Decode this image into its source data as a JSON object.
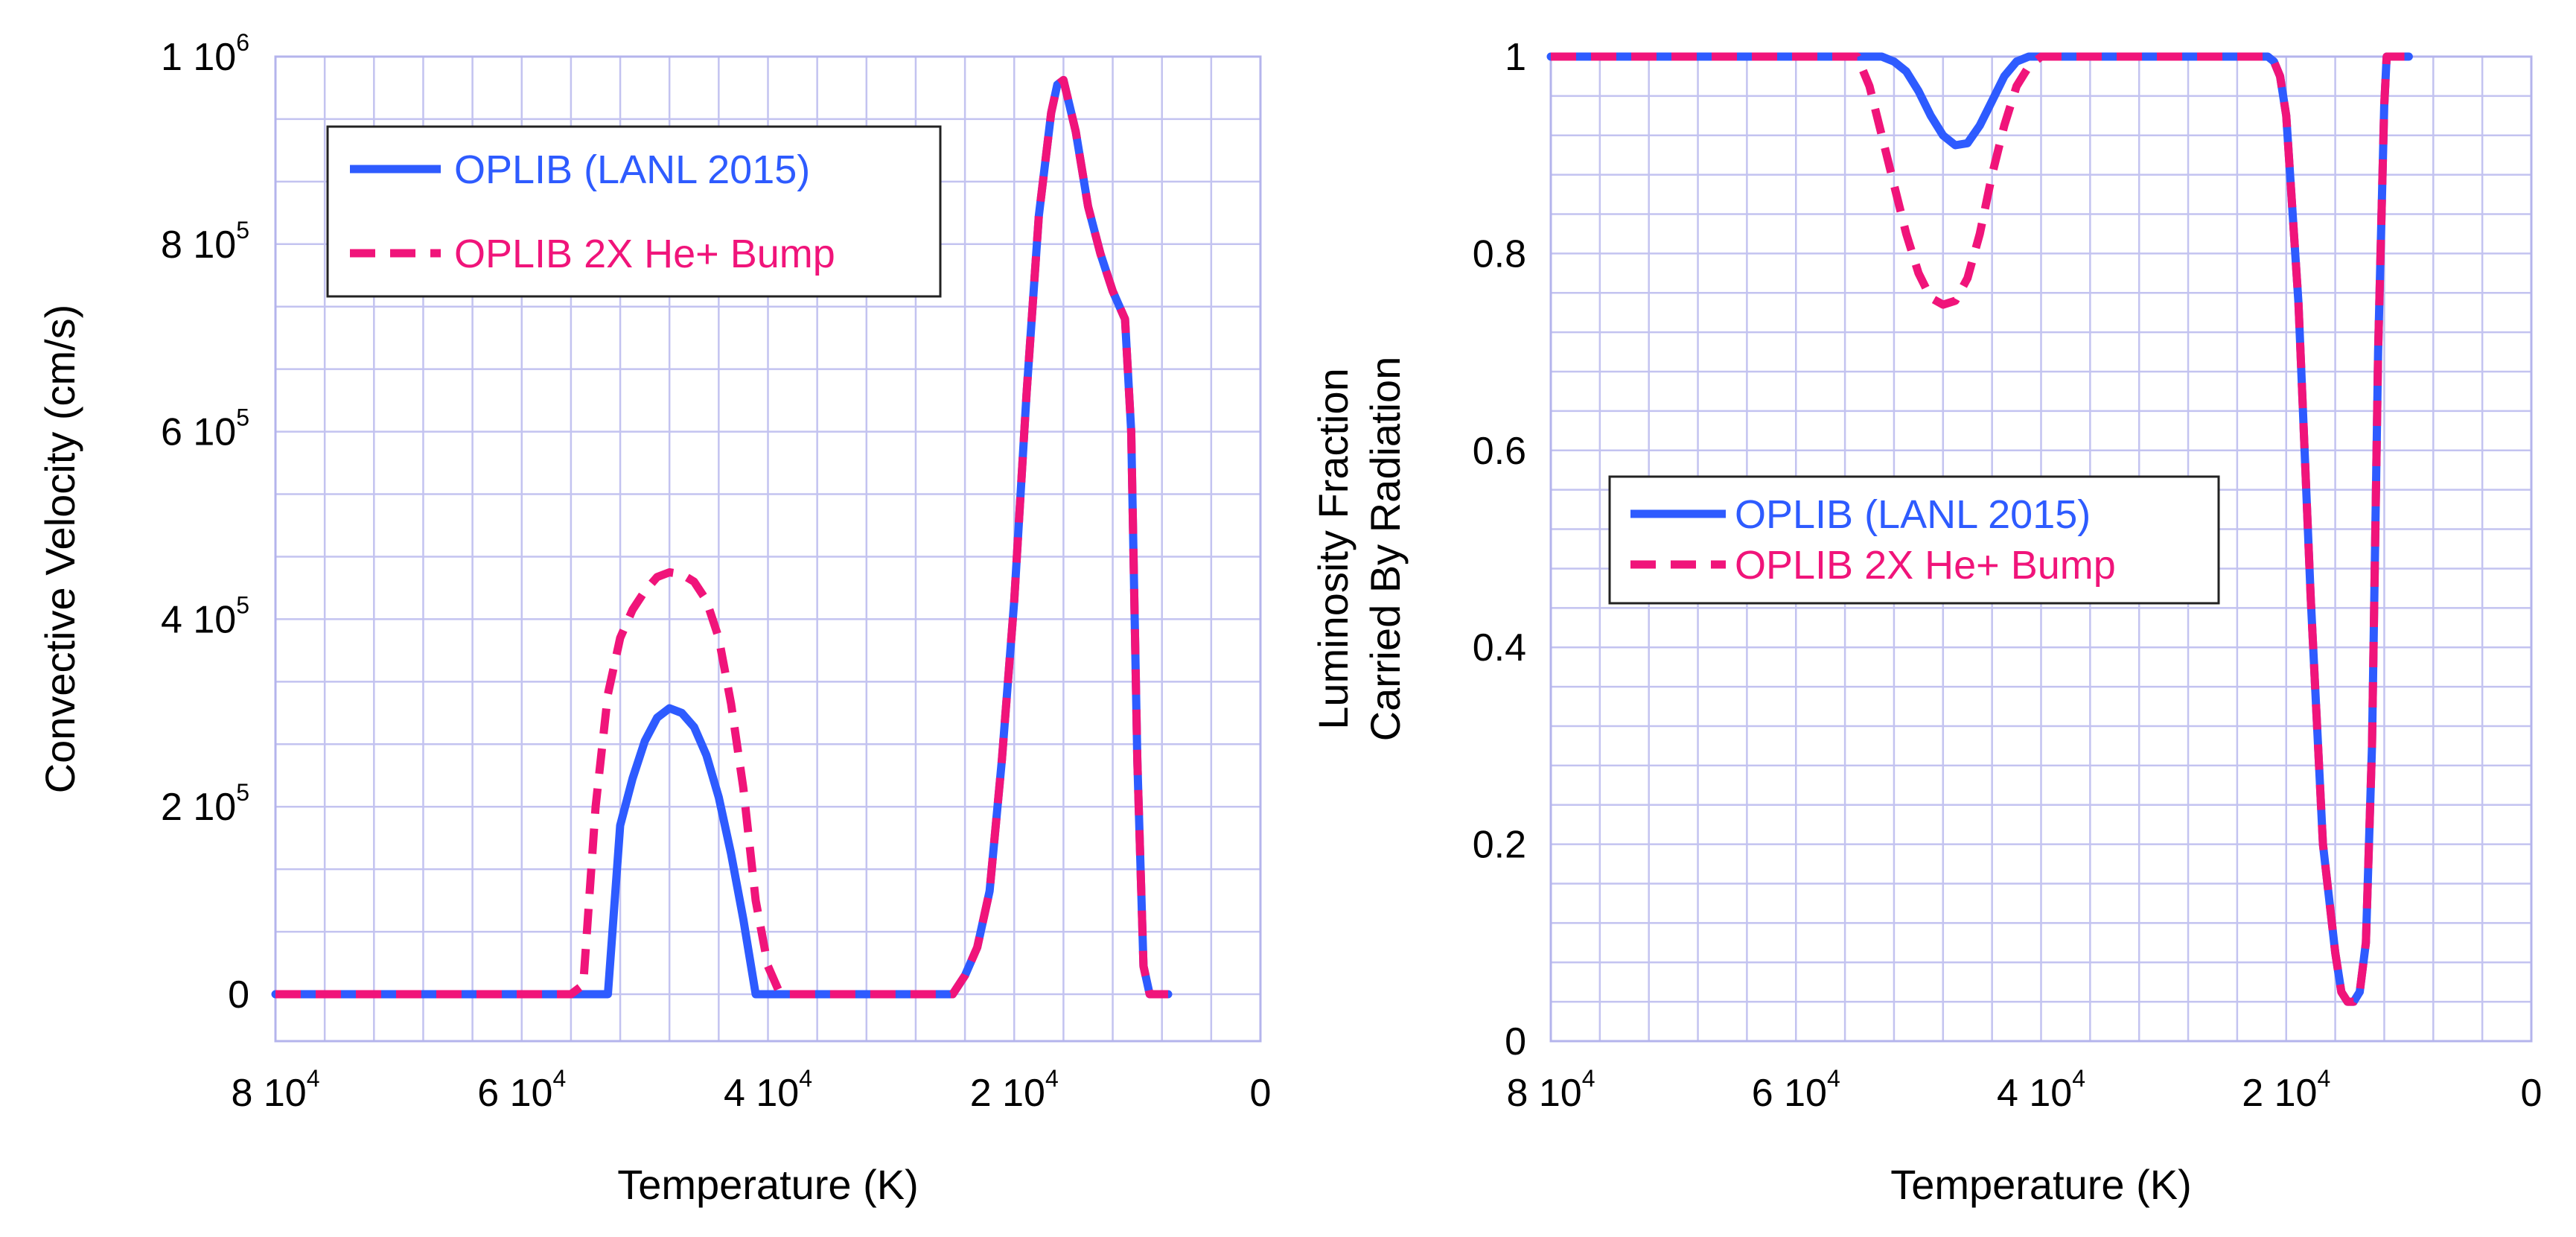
{
  "chart_data": [
    {
      "type": "line",
      "xlabel": "Temperature (K)",
      "ylabel": "Convective Velocity (cm/s)",
      "xlim": [
        80000,
        0
      ],
      "ylim": [
        -50000,
        1000000
      ],
      "x_ticks": [
        {
          "value": 80000,
          "mant": "8 10",
          "exp": "4"
        },
        {
          "value": 60000,
          "mant": "6 10",
          "exp": "4"
        },
        {
          "value": 40000,
          "mant": "4 10",
          "exp": "4"
        },
        {
          "value": 20000,
          "mant": "2 10",
          "exp": "4"
        },
        {
          "value": 0,
          "mant": "0",
          "exp": ""
        }
      ],
      "y_ticks": [
        {
          "value": 1000000,
          "mant": "1 10",
          "exp": "6"
        },
        {
          "value": 800000,
          "mant": "8 10",
          "exp": "5"
        },
        {
          "value": 600000,
          "mant": "6 10",
          "exp": "5"
        },
        {
          "value": 400000,
          "mant": "4 10",
          "exp": "5"
        },
        {
          "value": 200000,
          "mant": "2 10",
          "exp": "5"
        },
        {
          "value": 0,
          "mant": "0",
          "exp": ""
        }
      ],
      "legend_position": "top-left",
      "series": [
        {
          "name": "OPLIB (LANL 2015)",
          "color": "#2e5bff",
          "dash": "solid",
          "points": [
            [
              80000,
              0
            ],
            [
              70000,
              0
            ],
            [
              60000,
              0
            ],
            [
              53000,
              0
            ],
            [
              52000,
              180000
            ],
            [
              51000,
              230000
            ],
            [
              50000,
              270000
            ],
            [
              49000,
              295000
            ],
            [
              48000,
              305000
            ],
            [
              47000,
              300000
            ],
            [
              46000,
              285000
            ],
            [
              45000,
              255000
            ],
            [
              44000,
              210000
            ],
            [
              43000,
              150000
            ],
            [
              42000,
              80000
            ],
            [
              41000,
              0
            ],
            [
              38000,
              0
            ],
            [
              30000,
              0
            ],
            [
              25000,
              0
            ],
            [
              24000,
              20000
            ],
            [
              23000,
              50000
            ],
            [
              22000,
              110000
            ],
            [
              21000,
              250000
            ],
            [
              20000,
              420000
            ],
            [
              19000,
              640000
            ],
            [
              18000,
              830000
            ],
            [
              17000,
              940000
            ],
            [
              16500,
              970000
            ],
            [
              16000,
              975000
            ],
            [
              15000,
              920000
            ],
            [
              14000,
              840000
            ],
            [
              13000,
              790000
            ],
            [
              12000,
              750000
            ],
            [
              11000,
              720000
            ],
            [
              10500,
              600000
            ],
            [
              10000,
              250000
            ],
            [
              9500,
              30000
            ],
            [
              9000,
              0
            ],
            [
              7500,
              0
            ]
          ]
        },
        {
          "name": "OPLIB 2X He+ Bump",
          "color": "#f0147a",
          "dash": "dashed",
          "points": [
            [
              80000,
              0
            ],
            [
              70000,
              0
            ],
            [
              60000,
              0
            ],
            [
              56000,
              0
            ],
            [
              55000,
              10000
            ],
            [
              54000,
              200000
            ],
            [
              53000,
              320000
            ],
            [
              52000,
              380000
            ],
            [
              51000,
              410000
            ],
            [
              50000,
              430000
            ],
            [
              49000,
              445000
            ],
            [
              48000,
              450000
            ],
            [
              47000,
              448000
            ],
            [
              46000,
              440000
            ],
            [
              45000,
              420000
            ],
            [
              44000,
              380000
            ],
            [
              43000,
              310000
            ],
            [
              42000,
              220000
            ],
            [
              41000,
              100000
            ],
            [
              40000,
              30000
            ],
            [
              39000,
              0
            ],
            [
              38000,
              0
            ],
            [
              30000,
              0
            ],
            [
              25000,
              0
            ],
            [
              24000,
              20000
            ],
            [
              23000,
              50000
            ],
            [
              22000,
              110000
            ],
            [
              21000,
              250000
            ],
            [
              20000,
              420000
            ],
            [
              19000,
              640000
            ],
            [
              18000,
              830000
            ],
            [
              17000,
              940000
            ],
            [
              16500,
              970000
            ],
            [
              16000,
              975000
            ],
            [
              15000,
              920000
            ],
            [
              14000,
              840000
            ],
            [
              13000,
              790000
            ],
            [
              12000,
              750000
            ],
            [
              11000,
              720000
            ],
            [
              10500,
              600000
            ],
            [
              10000,
              250000
            ],
            [
              9500,
              30000
            ],
            [
              9000,
              0
            ],
            [
              7500,
              0
            ]
          ]
        }
      ]
    },
    {
      "type": "line",
      "xlabel": "Temperature (K)",
      "ylabel": "Luminosity Fraction",
      "ylabel2": "Carried By Radiation",
      "xlim": [
        80000,
        0
      ],
      "ylim": [
        0,
        1
      ],
      "x_ticks": [
        {
          "value": 80000,
          "mant": "8 10",
          "exp": "4"
        },
        {
          "value": 60000,
          "mant": "6 10",
          "exp": "4"
        },
        {
          "value": 40000,
          "mant": "4 10",
          "exp": "4"
        },
        {
          "value": 20000,
          "mant": "2 10",
          "exp": "4"
        },
        {
          "value": 0,
          "mant": "0",
          "exp": ""
        }
      ],
      "y_ticks": [
        {
          "value": 1,
          "mant": "1",
          "exp": ""
        },
        {
          "value": 0.8,
          "mant": "0.8",
          "exp": ""
        },
        {
          "value": 0.6,
          "mant": "0.6",
          "exp": ""
        },
        {
          "value": 0.4,
          "mant": "0.4",
          "exp": ""
        },
        {
          "value": 0.2,
          "mant": "0.2",
          "exp": ""
        },
        {
          "value": 0,
          "mant": "0",
          "exp": ""
        }
      ],
      "legend_position": "center-left",
      "series": [
        {
          "name": "OPLIB (LANL 2015)",
          "color": "#2e5bff",
          "dash": "solid",
          "points": [
            [
              80000,
              1
            ],
            [
              60000,
              1
            ],
            [
              53000,
              1
            ],
            [
              52000,
              0.995
            ],
            [
              51000,
              0.985
            ],
            [
              50000,
              0.965
            ],
            [
              49000,
              0.94
            ],
            [
              48000,
              0.92
            ],
            [
              47000,
              0.91
            ],
            [
              46000,
              0.912
            ],
            [
              45000,
              0.93
            ],
            [
              44000,
              0.955
            ],
            [
              43000,
              0.98
            ],
            [
              42000,
              0.995
            ],
            [
              41000,
              1
            ],
            [
              21500,
              1
            ],
            [
              21000,
              0.995
            ],
            [
              20500,
              0.98
            ],
            [
              20000,
              0.94
            ],
            [
              19000,
              0.75
            ],
            [
              18000,
              0.45
            ],
            [
              17000,
              0.2
            ],
            [
              16000,
              0.09
            ],
            [
              15500,
              0.05
            ],
            [
              15000,
              0.04
            ],
            [
              14500,
              0.04
            ],
            [
              14000,
              0.05
            ],
            [
              13500,
              0.1
            ],
            [
              13000,
              0.3
            ],
            [
              12500,
              0.7
            ],
            [
              12000,
              0.95
            ],
            [
              11800,
              1
            ],
            [
              10000,
              1
            ]
          ]
        },
        {
          "name": "OPLIB 2X He+ Bump",
          "color": "#f0147a",
          "dash": "dashed",
          "points": [
            [
              80000,
              1
            ],
            [
              60000,
              1
            ],
            [
              55000,
              1
            ],
            [
              54000,
              0.97
            ],
            [
              53000,
              0.92
            ],
            [
              52000,
              0.87
            ],
            [
              51000,
              0.82
            ],
            [
              50000,
              0.78
            ],
            [
              49000,
              0.755
            ],
            [
              48000,
              0.748
            ],
            [
              47000,
              0.752
            ],
            [
              46000,
              0.775
            ],
            [
              45000,
              0.82
            ],
            [
              44000,
              0.88
            ],
            [
              43000,
              0.93
            ],
            [
              42000,
              0.97
            ],
            [
              41000,
              0.99
            ],
            [
              40000,
              1
            ],
            [
              21500,
              1
            ],
            [
              21000,
              0.995
            ],
            [
              20500,
              0.98
            ],
            [
              20000,
              0.94
            ],
            [
              19000,
              0.75
            ],
            [
              18000,
              0.45
            ],
            [
              17000,
              0.2
            ],
            [
              16000,
              0.09
            ],
            [
              15500,
              0.05
            ],
            [
              15000,
              0.04
            ],
            [
              14500,
              0.04
            ],
            [
              14000,
              0.05
            ],
            [
              13500,
              0.1
            ],
            [
              13000,
              0.3
            ],
            [
              12500,
              0.7
            ],
            [
              12000,
              0.95
            ],
            [
              11800,
              1
            ],
            [
              10000,
              1
            ]
          ]
        }
      ]
    }
  ]
}
